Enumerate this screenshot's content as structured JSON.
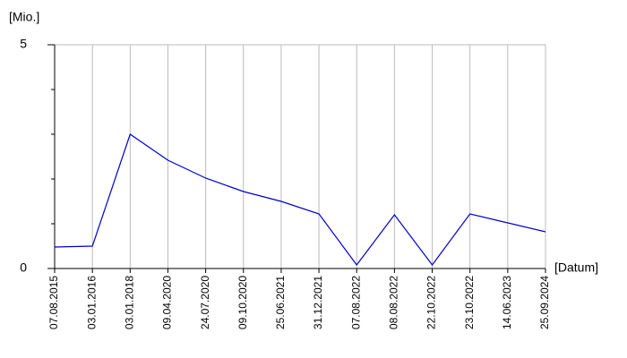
{
  "chart_data": {
    "type": "line",
    "y_label": "[Mio.]",
    "x_label": "[Datum]",
    "categories": [
      "07.08.2015",
      "03.01.2016",
      "03.01.2018",
      "09.04.2020",
      "24.07.2020",
      "09.10.2020",
      "25.06.2021",
      "31.12.2021",
      "07.08.2022",
      "08.08.2022",
      "22.10.2022",
      "23.10.2022",
      "14.06.2023",
      "25.09.2024"
    ],
    "series": [
      {
        "color": "#0000cc",
        "values": [
          0.48,
          0.5,
          3.0,
          2.42,
          2.02,
          1.72,
          1.5,
          1.22,
          0.08,
          1.2,
          0.08,
          1.22,
          1.02,
          0.82
        ]
      }
    ],
    "ylim": [
      0,
      5
    ],
    "yticks": [
      0,
      5
    ],
    "yminorticks": [
      1,
      2,
      3,
      4
    ],
    "grid": true
  }
}
